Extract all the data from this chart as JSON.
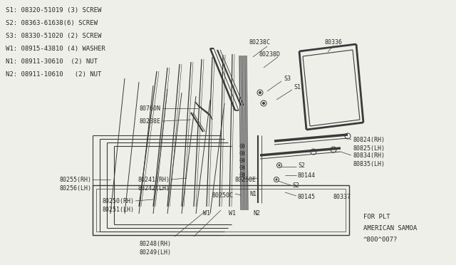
{
  "bg_color": "#efefea",
  "line_color": "#3a3a3a",
  "text_color": "#2a2a2a",
  "legend_items": [
    "S1: 08320-51019 (3) SCREW",
    "S2: 08363-61638(6) SCREW",
    "S3: 08330-51020 (2) SCREW",
    "W1: 08915-43810 (4) WASHER",
    "N1: 08911-30610  (2) NUT",
    "N2: 08911-10610   (2) NUT"
  ]
}
